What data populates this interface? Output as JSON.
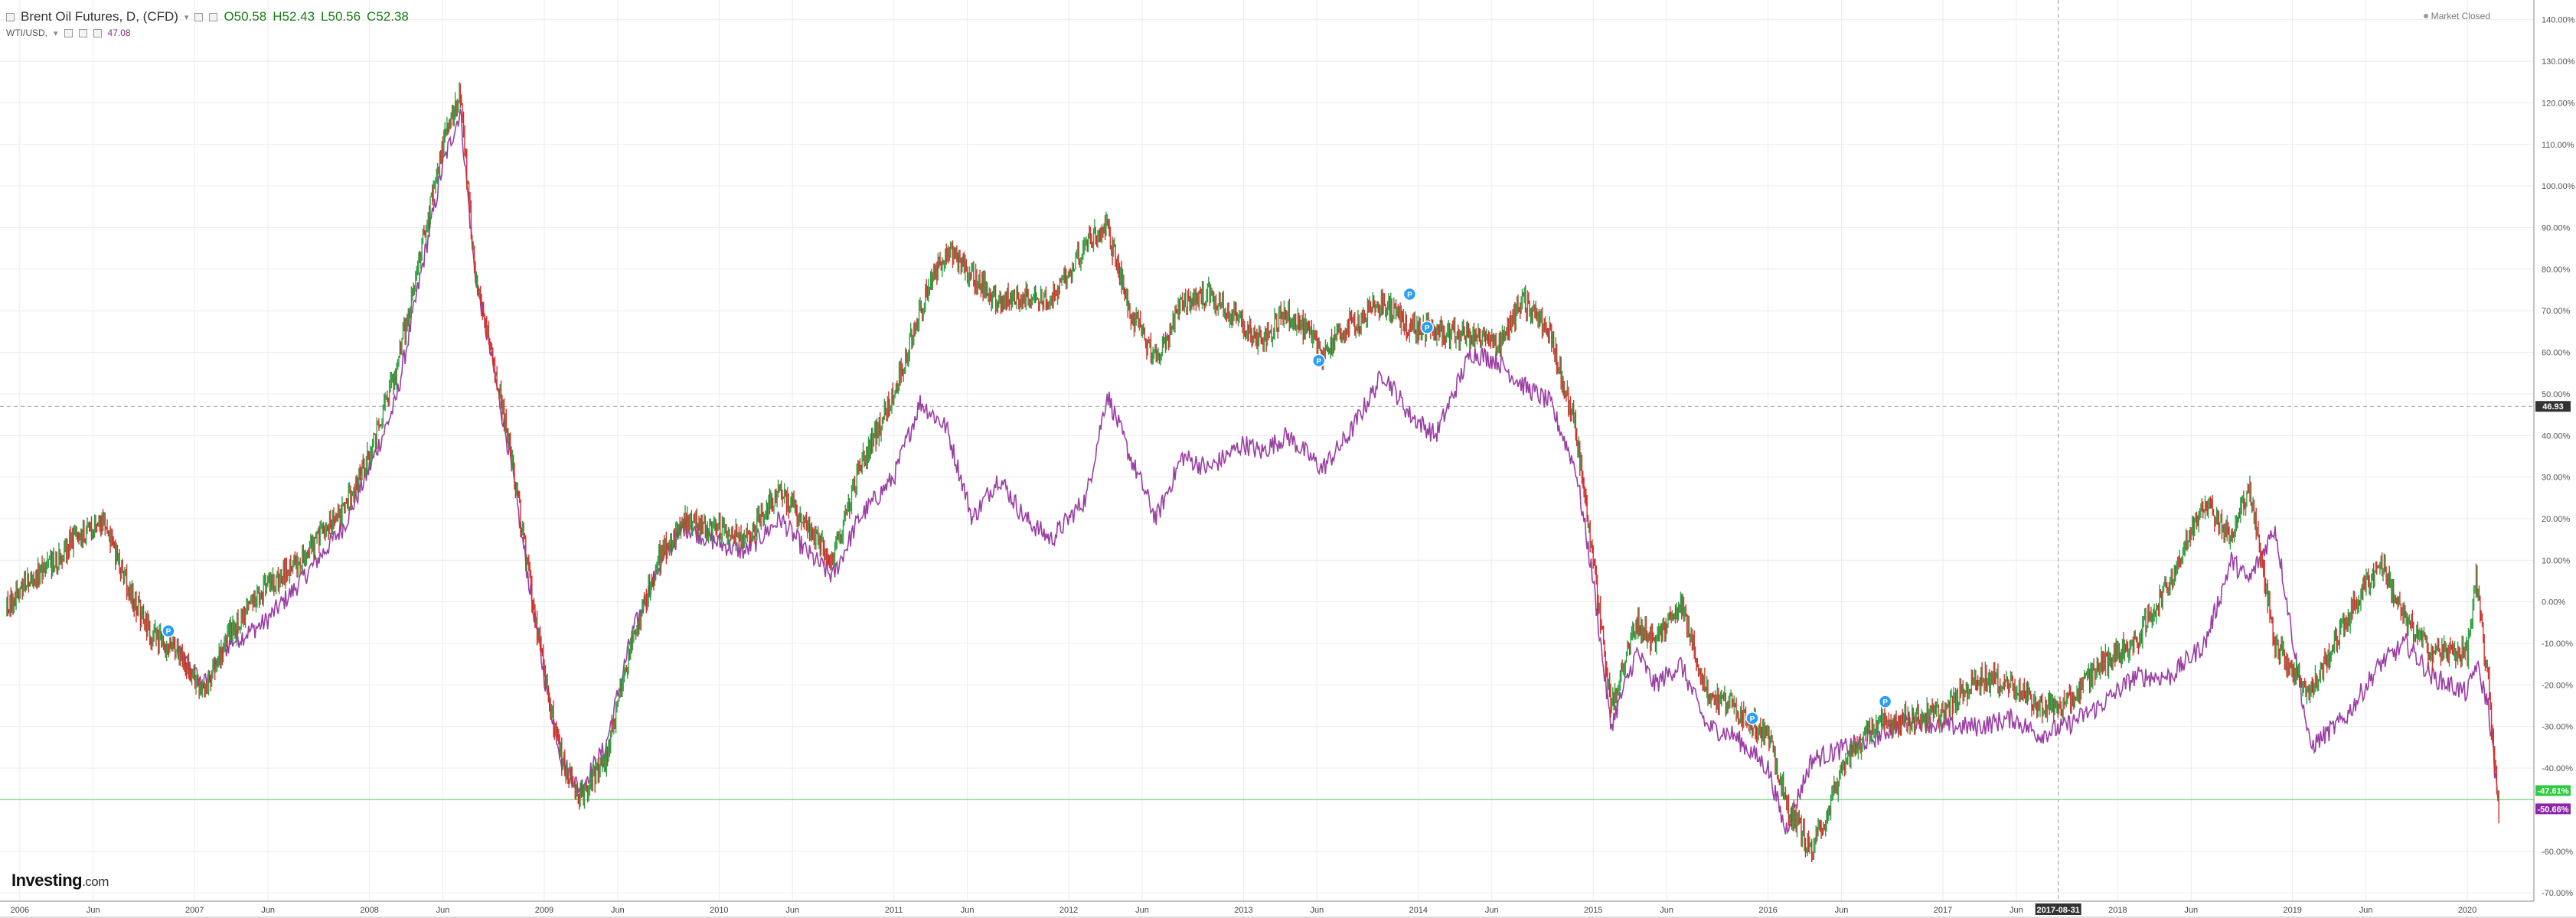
{
  "legend": {
    "main_title": "Brent Oil Futures, D, (CFD)",
    "open_label": "O50.58",
    "high_label": "H52.43",
    "low_label": "L50.56",
    "close_label": "C52.38",
    "compare_symbol": "WTI/USD,",
    "compare_value": "47.08"
  },
  "market_status": "Market Closed",
  "logo": {
    "name": "Investing",
    "suffix": ".com"
  },
  "colors": {
    "up": "#2ea043",
    "down": "#d0312d",
    "compare_line": "#9b3fa5",
    "zero_line_label_bg": "#2ecc40",
    "compare_label_bg": "#8e24aa",
    "price_label_bg": "#333333",
    "event_marker": "#2a9df4"
  },
  "icons": [
    "collapse-icon",
    "chevron-down-icon",
    "settings-icon",
    "eye-icon",
    "close-icon",
    "market-status-dot-icon",
    "dividend-event-icon"
  ],
  "chart_data": {
    "type": "line",
    "title": "Brent Oil Futures, D, (CFD)",
    "xlabel": "",
    "ylabel": "",
    "y_unit": "%",
    "ylim": [
      -72,
      144
    ],
    "xlim": [
      2005.9,
      2020.35
    ],
    "grid": true,
    "y_ticks": [
      140,
      130,
      120,
      110,
      100,
      90,
      80,
      70,
      60,
      50,
      40,
      30,
      20,
      10,
      0,
      -10,
      -20,
      -30,
      -40,
      -60,
      -70
    ],
    "y_tick_labels": [
      "140.00%",
      "130.00%",
      "120.00%",
      "110.00%",
      "100.00%",
      "90.00%",
      "80.00%",
      "70.00%",
      "60.00%",
      "50.00%",
      "40.00%",
      "30.00%",
      "20.00%",
      "10.00%",
      "0.00%",
      "-10.00%",
      "-20.00%",
      "-30.00%",
      "-40.00%",
      "-60.00%",
      "-70.00%"
    ],
    "x_ticks": [
      {
        "x": 2006.0,
        "label": "2006"
      },
      {
        "x": 2006.42,
        "label": "Jun"
      },
      {
        "x": 2007.0,
        "label": "2007"
      },
      {
        "x": 2007.42,
        "label": "Jun"
      },
      {
        "x": 2008.0,
        "label": "2008"
      },
      {
        "x": 2008.42,
        "label": "Jun"
      },
      {
        "x": 2009.0,
        "label": "2009"
      },
      {
        "x": 2009.42,
        "label": "Jun"
      },
      {
        "x": 2010.0,
        "label": "2010"
      },
      {
        "x": 2010.42,
        "label": "Jun"
      },
      {
        "x": 2011.0,
        "label": "2011"
      },
      {
        "x": 2011.42,
        "label": "Jun"
      },
      {
        "x": 2012.0,
        "label": "2012"
      },
      {
        "x": 2012.42,
        "label": "Jun"
      },
      {
        "x": 2013.0,
        "label": "2013"
      },
      {
        "x": 2013.42,
        "label": "Jun"
      },
      {
        "x": 2014.0,
        "label": "2014"
      },
      {
        "x": 2014.42,
        "label": "Jun"
      },
      {
        "x": 2015.0,
        "label": "2015"
      },
      {
        "x": 2015.42,
        "label": "Jun"
      },
      {
        "x": 2016.0,
        "label": "2016"
      },
      {
        "x": 2016.42,
        "label": "Jun"
      },
      {
        "x": 2017.0,
        "label": "2017"
      },
      {
        "x": 2017.42,
        "label": "Jun"
      },
      {
        "x": 2018.0,
        "label": "2018"
      },
      {
        "x": 2018.42,
        "label": "Jun"
      },
      {
        "x": 2019.0,
        "label": "2019"
      },
      {
        "x": 2019.42,
        "label": "Jun"
      },
      {
        "x": 2020.0,
        "label": "2020"
      }
    ],
    "crosshair": {
      "x": 2017.66,
      "label": "2017-08-31",
      "y": 47,
      "y_label": "46.93"
    },
    "series": [
      {
        "name": "Brent Oil Futures",
        "x": [
          2005.92,
          2006.05,
          2006.2,
          2006.35,
          2006.5,
          2006.6,
          2006.75,
          2006.9,
          2007.05,
          2007.2,
          2007.4,
          2007.55,
          2007.7,
          2007.85,
          2008.0,
          2008.15,
          2008.3,
          2008.42,
          2008.52,
          2008.6,
          2008.7,
          2008.8,
          2008.9,
          2009.0,
          2009.1,
          2009.2,
          2009.35,
          2009.5,
          2009.65,
          2009.8,
          2010.0,
          2010.15,
          2010.35,
          2010.5,
          2010.65,
          2010.8,
          2011.0,
          2011.15,
          2011.3,
          2011.45,
          2011.6,
          2011.75,
          2011.9,
          2012.1,
          2012.22,
          2012.35,
          2012.5,
          2012.65,
          2012.8,
          2013.0,
          2013.1,
          2013.25,
          2013.45,
          2013.6,
          2013.8,
          2013.95,
          2014.1,
          2014.3,
          2014.45,
          2014.6,
          2014.75,
          2014.9,
          2015.0,
          2015.1,
          2015.25,
          2015.35,
          2015.5,
          2015.65,
          2015.8,
          2016.0,
          2016.1,
          2016.25,
          2016.45,
          2016.6,
          2016.8,
          2017.0,
          2017.2,
          2017.4,
          2017.55,
          2017.7,
          2017.9,
          2018.1,
          2018.3,
          2018.5,
          2018.65,
          2018.75,
          2018.9,
          2019.1,
          2019.3,
          2019.5,
          2019.65,
          2019.8,
          2020.0,
          2020.05,
          2020.12,
          2020.18
        ],
        "values": [
          -2,
          5,
          10,
          17,
          18,
          5,
          -8,
          -12,
          -22,
          -8,
          3,
          8,
          15,
          22,
          35,
          55,
          85,
          110,
          122,
          80,
          60,
          38,
          10,
          -18,
          -38,
          -48,
          -38,
          -10,
          10,
          20,
          17,
          15,
          27,
          18,
          10,
          32,
          50,
          70,
          85,
          78,
          72,
          74,
          72,
          86,
          90,
          70,
          58,
          72,
          74,
          66,
          62,
          70,
          60,
          66,
          72,
          66,
          65,
          64,
          62,
          72,
          65,
          42,
          10,
          -25,
          -5,
          -10,
          0,
          -22,
          -25,
          -32,
          -48,
          -60,
          -38,
          -30,
          -28,
          -27,
          -18,
          -20,
          -25,
          -25,
          -15,
          -10,
          5,
          25,
          15,
          28,
          -10,
          -22,
          -5,
          10,
          -5,
          -12,
          -12,
          5,
          -20,
          -50
        ],
        "last_value_label": "-47.61%"
      },
      {
        "name": "WTI/USD",
        "x": [
          2006.9,
          2007.05,
          2007.2,
          2007.4,
          2007.55,
          2007.7,
          2007.85,
          2008.0,
          2008.15,
          2008.3,
          2008.42,
          2008.52,
          2008.6,
          2008.7,
          2008.8,
          2008.9,
          2009.0,
          2009.1,
          2009.2,
          2009.35,
          2009.5,
          2009.65,
          2009.8,
          2010.0,
          2010.15,
          2010.35,
          2010.5,
          2010.65,
          2010.8,
          2011.0,
          2011.15,
          2011.3,
          2011.45,
          2011.6,
          2011.75,
          2011.9,
          2012.1,
          2012.22,
          2012.35,
          2012.5,
          2012.65,
          2012.8,
          2013.0,
          2013.1,
          2013.25,
          2013.45,
          2013.6,
          2013.8,
          2013.95,
          2014.1,
          2014.3,
          2014.45,
          2014.6,
          2014.75,
          2014.9,
          2015.0,
          2015.1,
          2015.25,
          2015.35,
          2015.5,
          2015.65,
          2015.8,
          2016.0,
          2016.1,
          2016.25,
          2016.45,
          2016.6,
          2016.8,
          2017.0,
          2017.2,
          2017.4,
          2017.55,
          2017.7,
          2017.9,
          2018.1,
          2018.3,
          2018.5,
          2018.65,
          2018.75,
          2018.9,
          2019.1,
          2019.3,
          2019.5,
          2019.65,
          2019.8,
          2020.0,
          2020.05,
          2020.12,
          2020.18
        ],
        "values": [
          -12,
          -20,
          -10,
          -5,
          2,
          10,
          18,
          32,
          48,
          80,
          105,
          118,
          80,
          58,
          36,
          8,
          -18,
          -38,
          -45,
          -35,
          -8,
          8,
          18,
          14,
          12,
          20,
          12,
          6,
          20,
          30,
          48,
          42,
          20,
          30,
          20,
          15,
          25,
          50,
          35,
          20,
          35,
          32,
          38,
          36,
          40,
          32,
          40,
          55,
          45,
          40,
          60,
          58,
          52,
          48,
          32,
          5,
          -30,
          -12,
          -20,
          -15,
          -30,
          -32,
          -40,
          -55,
          -38,
          -35,
          -33,
          -28,
          -30,
          -30,
          -28,
          -32,
          -30,
          -25,
          -18,
          -18,
          -10,
          10,
          5,
          18,
          -35,
          -28,
          -15,
          -10,
          -18,
          -22,
          -15,
          -25,
          -50
        ],
        "last_value_label": "-50.66%"
      }
    ],
    "events": [
      {
        "x": 2006.85,
        "y": -7
      },
      {
        "x": 2013.43,
        "y": 58
      },
      {
        "x": 2013.95,
        "y": 74
      },
      {
        "x": 2014.05,
        "y": 66
      },
      {
        "x": 2015.91,
        "y": -28
      },
      {
        "x": 2016.67,
        "y": -24
      }
    ],
    "reference_line": {
      "y": -47.6
    }
  }
}
